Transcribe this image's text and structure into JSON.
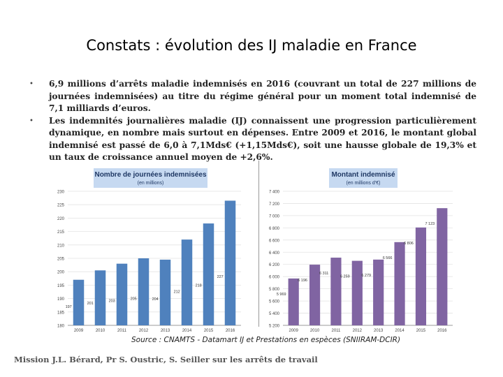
{
  "slide": {
    "title": "Constats : évolution des IJ maladie en France",
    "bullets": [
      "6,9 millions d’arrêts maladie indemnisés en 2016 (couvrant un total de 227 millions de journées indemnisées) au titre du régime général pour un moment total indemnisé de 7,1 milliards d’euros.",
      "Les indemnités journalières maladie (IJ) connaissent une progression particulièrement dynamique, en nombre mais surtout en dépenses. Entre 2009 et 2016, le montant global indemnisé est passé de 6,0 à 7,1Mds€ (+1,15Mds€), soit une hausse globale de 19,3% et un taux de croissance annuel moyen de +2,6%."
    ],
    "bullet_symbol": "•",
    "source": "Source : CNAMTS - Datamart IJ et Prestations en espèces (SNIIRAM-DCIR)",
    "footer": "Mission J.L. Bérard, Pr S. Oustric, S. Seiller sur les arrêts de travail"
  },
  "chart_data": [
    {
      "type": "bar",
      "title": "Nombre de journées indemnisées",
      "subtitle": "(en millions)",
      "categories": [
        "2009",
        "2010",
        "2011",
        "2012",
        "2013",
        "2014",
        "2015",
        "2016"
      ],
      "values": [
        197,
        200.5,
        203,
        205,
        204.5,
        212,
        218,
        226.5
      ],
      "value_labels": [
        "197",
        "201",
        "203",
        "205",
        "204",
        "212",
        "218",
        "227"
      ],
      "ylim": [
        180,
        230
      ],
      "yticks": [
        "180",
        "185",
        "190",
        "195",
        "200",
        "205",
        "210",
        "215",
        "220",
        "225",
        "230"
      ],
      "color": "#4f81bd",
      "header_color": "#c6d9f1"
    },
    {
      "type": "bar",
      "title": "Montant indemnisé",
      "subtitle": "(en millions d’€)",
      "categories": [
        "2009",
        "2010",
        "2011",
        "2012",
        "2013",
        "2014",
        "2015",
        "2016"
      ],
      "values": [
        5969,
        6196,
        6311,
        6259,
        6279,
        6566,
        6806,
        7123
      ],
      "value_labels": [
        "5 969",
        "6 196",
        "6 311",
        "6 259",
        "6 279",
        "6 566",
        "6 806",
        "7 123"
      ],
      "ylim": [
        5200,
        7400
      ],
      "yticks": [
        "5 200",
        "5 400",
        "5 600",
        "5 800",
        "6 000",
        "6 200",
        "6 400",
        "6 600",
        "6 800",
        "7 000",
        "7 200",
        "7 400"
      ],
      "color": "#8064a2",
      "header_color": "#c6d9f1"
    }
  ]
}
